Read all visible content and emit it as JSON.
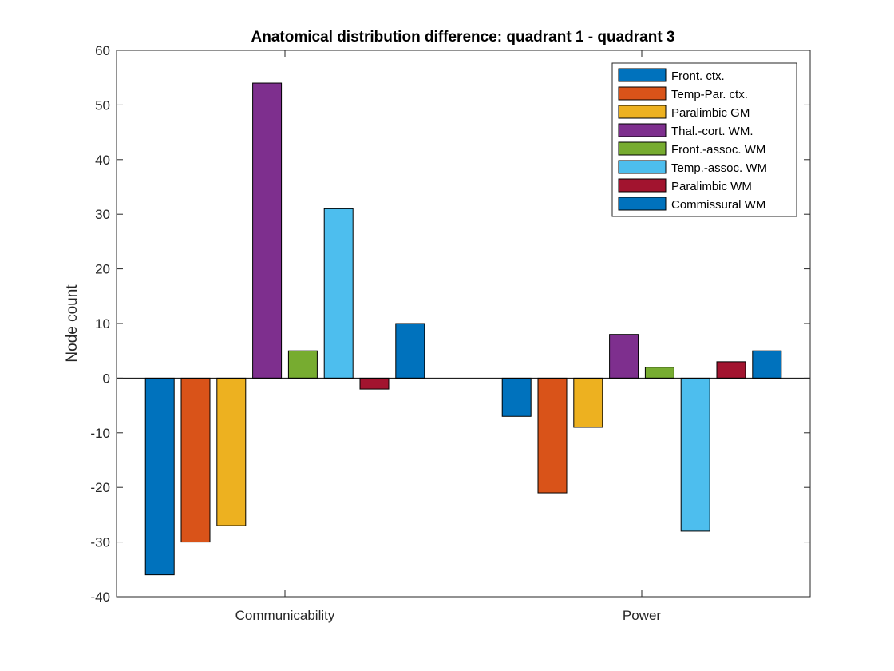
{
  "chart_data": {
    "type": "bar",
    "title": "Anatomical distribution difference: quadrant 1 - quadrant 3",
    "xlabel": "",
    "ylabel": "Node count",
    "categories": [
      "Communicability",
      "Power"
    ],
    "ylim": [
      -40,
      60
    ],
    "yticks": [
      -40,
      -30,
      -20,
      -10,
      0,
      10,
      20,
      30,
      40,
      50,
      60
    ],
    "grid": false,
    "legend_position": "top-right",
    "series": [
      {
        "name": "Front. ctx.",
        "color": "#0072BD",
        "values": [
          -36,
          -7
        ]
      },
      {
        "name": "Temp-Par. ctx.",
        "color": "#D95319",
        "values": [
          -30,
          -21
        ]
      },
      {
        "name": "Paralimbic GM",
        "color": "#EDB120",
        "values": [
          -27,
          -9
        ]
      },
      {
        "name": "Thal.-cort. WM.",
        "color": "#7E2F8E",
        "values": [
          54,
          8
        ]
      },
      {
        "name": "Front.-assoc. WM",
        "color": "#77AC30",
        "values": [
          5,
          2
        ]
      },
      {
        "name": "Temp.-assoc. WM",
        "color": "#4DBEEE",
        "values": [
          31,
          -28
        ]
      },
      {
        "name": "Paralimbic WM",
        "color": "#A2142F",
        "values": [
          -2,
          3
        ]
      },
      {
        "name": "Commissural WM",
        "color": "#0072BD",
        "values": [
          10,
          5
        ]
      }
    ]
  }
}
